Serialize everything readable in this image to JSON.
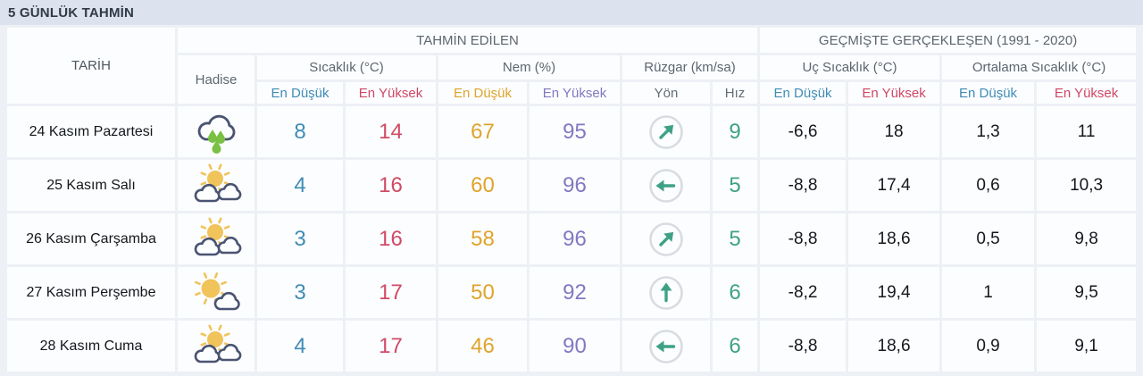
{
  "page": {
    "title": "5 GÜNLÜK TAHMİN"
  },
  "colors": {
    "page_background": "#edf1f6",
    "title_bar_background": "#dce3ee",
    "cell_background": "#fcfdfe",
    "min_blue": "#3f8cb5",
    "max_red": "#cf4767",
    "humidity_min_orange": "#dfa32b",
    "humidity_max_purple": "#8077c1",
    "wind_teal": "#3ea186",
    "rain_drop_green": "#79c043",
    "sun_yellow": "#f1c35b",
    "cloud_outline_navy": "#4a5472"
  },
  "table": {
    "header": {
      "date": "TARİH",
      "predicted": "TAHMİN EDİLEN",
      "historical": "GEÇMİŞTE GERÇEKLEŞEN (1991 - 2020)",
      "condition": "Hadise",
      "temperature": "Sıcaklık (°C)",
      "humidity": "Nem (%)",
      "wind": "Rüzgar (km/sa)",
      "extreme_temp": "Uç Sıcaklık (°C)",
      "average_temp": "Ortalama Sıcaklık (°C)",
      "min": "En Düşük",
      "max": "En Yüksek",
      "direction": "Yön",
      "speed": "Hız"
    },
    "rows": [
      {
        "date": "24 Kasım Pazartesi",
        "condition_icon": "rain-icon",
        "temp_min": "8",
        "temp_max": "14",
        "hum_min": "67",
        "hum_max": "95",
        "wind_dir": "NE",
        "wind_speed": "9",
        "ext_min": "-6,6",
        "ext_max": "18",
        "avg_min": "1,3",
        "avg_max": "11"
      },
      {
        "date": "25 Kasım Salı",
        "condition_icon": "sun-clouds-icon",
        "temp_min": "4",
        "temp_max": "16",
        "hum_min": "60",
        "hum_max": "96",
        "wind_dir": "W",
        "wind_speed": "5",
        "ext_min": "-8,8",
        "ext_max": "17,4",
        "avg_min": "0,6",
        "avg_max": "10,3"
      },
      {
        "date": "26 Kasım Çarşamba",
        "condition_icon": "sun-clouds-icon",
        "temp_min": "3",
        "temp_max": "16",
        "hum_min": "58",
        "hum_max": "96",
        "wind_dir": "NE",
        "wind_speed": "5",
        "ext_min": "-8,8",
        "ext_max": "18,6",
        "avg_min": "0,5",
        "avg_max": "9,8"
      },
      {
        "date": "27 Kasım Perşembe",
        "condition_icon": "sun-cloud-icon",
        "temp_min": "3",
        "temp_max": "17",
        "hum_min": "50",
        "hum_max": "92",
        "wind_dir": "N",
        "wind_speed": "6",
        "ext_min": "-8,2",
        "ext_max": "19,4",
        "avg_min": "1",
        "avg_max": "9,5"
      },
      {
        "date": "28 Kasım Cuma",
        "condition_icon": "sun-clouds-icon",
        "temp_min": "4",
        "temp_max": "17",
        "hum_min": "46",
        "hum_max": "90",
        "wind_dir": "W",
        "wind_speed": "6",
        "ext_min": "-8,8",
        "ext_max": "18,6",
        "avg_min": "0,9",
        "avg_max": "9,1"
      }
    ]
  }
}
